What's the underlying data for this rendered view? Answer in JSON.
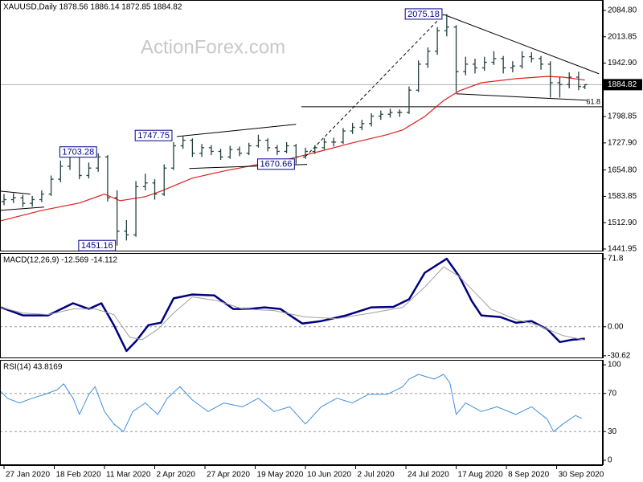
{
  "chart_data": [
    {
      "type": "ohlc",
      "title": "XAUUSD,Daily  1878.56 1886.14 1872.85 1884.82",
      "watermark": "ActionForex.com",
      "color": "#23403f",
      "x": [
        0,
        3,
        6,
        9,
        12,
        15,
        18,
        21,
        24,
        27,
        30,
        33,
        36,
        39,
        42,
        45,
        48,
        51,
        54,
        57,
        60,
        63,
        66,
        69,
        72,
        75,
        78,
        81,
        84,
        87,
        90,
        93,
        96,
        99,
        102,
        105,
        108,
        111,
        114,
        117,
        120,
        123,
        126,
        129,
        132,
        135,
        138,
        141,
        144,
        147,
        150,
        153,
        156,
        159,
        162,
        165,
        168,
        171,
        174,
        177,
        180,
        183,
        185
      ],
      "open": [
        1570,
        1575,
        1580,
        1565,
        1575,
        1590,
        1630,
        1665,
        1690,
        1640,
        1660,
        1690,
        1580,
        1490,
        1480,
        1610,
        1620,
        1590,
        1660,
        1720,
        1735,
        1700,
        1715,
        1705,
        1690,
        1710,
        1700,
        1720,
        1735,
        1715,
        1705,
        1720,
        1690,
        1705,
        1715,
        1730,
        1730,
        1760,
        1770,
        1780,
        1800,
        1805,
        1810,
        1810,
        1870,
        1940,
        1975,
        2030,
        2040,
        1920,
        1940,
        1930,
        1945,
        1955,
        1930,
        1935,
        1960,
        1955,
        1940,
        1890,
        1885,
        1905,
        1878.56
      ],
      "high": [
        1590,
        1592,
        1588,
        1585,
        1600,
        1640,
        1680,
        1703.28,
        1698,
        1675,
        1700,
        1695,
        1600,
        1520,
        1625,
        1645,
        1630,
        1670,
        1730,
        1747.75,
        1740,
        1725,
        1722,
        1712,
        1720,
        1718,
        1728,
        1750,
        1740,
        1722,
        1730,
        1725,
        1715,
        1722,
        1740,
        1742,
        1768,
        1782,
        1790,
        1808,
        1815,
        1820,
        1818,
        1880,
        1950,
        1985,
        2040,
        2075.18,
        2045,
        1960,
        1955,
        1960,
        1975,
        1962,
        1948,
        1975,
        1972,
        1962,
        1948,
        1905,
        1918,
        1920,
        1886.14
      ],
      "low": [
        1560,
        1566,
        1555,
        1556,
        1568,
        1585,
        1622,
        1655,
        1630,
        1632,
        1650,
        1570,
        1451.16,
        1465,
        1475,
        1600,
        1575,
        1585,
        1655,
        1712,
        1690,
        1690,
        1695,
        1682,
        1685,
        1692,
        1695,
        1715,
        1705,
        1695,
        1700,
        1670.66,
        1685,
        1698,
        1710,
        1718,
        1725,
        1752,
        1762,
        1772,
        1790,
        1796,
        1798,
        1806,
        1865,
        1930,
        1965,
        2015,
        1865,
        1910,
        1915,
        1922,
        1938,
        1915,
        1918,
        1928,
        1945,
        1925,
        1850,
        1850,
        1875,
        1870,
        1872.85
      ],
      "close": [
        1575,
        1580,
        1565,
        1575,
        1590,
        1630,
        1665,
        1690,
        1640,
        1660,
        1690,
        1580,
        1490,
        1480,
        1610,
        1620,
        1590,
        1660,
        1720,
        1735,
        1700,
        1715,
        1705,
        1690,
        1710,
        1700,
        1720,
        1735,
        1715,
        1705,
        1720,
        1690,
        1705,
        1715,
        1730,
        1730,
        1760,
        1770,
        1780,
        1800,
        1805,
        1810,
        1810,
        1870,
        1940,
        1975,
        2030,
        2040,
        1920,
        1940,
        1930,
        1945,
        1955,
        1930,
        1935,
        1960,
        1955,
        1940,
        1890,
        1885,
        1905,
        1880,
        1884.82
      ],
      "lines": [
        {
          "color": "#e02020",
          "x": [
            -1,
            12,
            24,
            32,
            37,
            45,
            50,
            60,
            70,
            81,
            91,
            101,
            111,
            122,
            127,
            134,
            140,
            145,
            152,
            163,
            173,
            178,
            185
          ],
          "values": [
            1518,
            1546,
            1566,
            1590,
            1572,
            1583,
            1598,
            1633,
            1652,
            1670,
            1685,
            1706,
            1728,
            1750,
            1763,
            1799,
            1842,
            1868,
            1890,
            1901,
            1907,
            1905,
            1897
          ]
        }
      ],
      "trendlines": [
        {
          "x": [
            -1.3,
            8.4
          ],
          "values": [
            1598,
            1590
          ]
        },
        {
          "x": [
            -1.3,
            12.8
          ],
          "values": [
            1546,
            1555
          ]
        },
        {
          "x": [
            55,
            93
          ],
          "values": [
            1745,
            1778
          ]
        },
        {
          "x": [
            59,
            96.5
          ],
          "values": [
            1659,
            1670
          ]
        },
        {
          "x": [
            96,
            140
          ],
          "values": [
            1691,
            2074
          ],
          "dashed": true
        },
        {
          "x": [
            140,
            189.5
          ],
          "values": [
            2074,
            1914
          ]
        },
        {
          "x": [
            144,
            185.6
          ],
          "values": [
            1860,
            1843
          ]
        }
      ],
      "price_labels": [
        {
          "x": 140,
          "value": 2075.18
        },
        {
          "x": 30,
          "value": 1703.28
        },
        {
          "x": 54,
          "value": 1747.75
        },
        {
          "x": 93,
          "value": 1670.66
        },
        {
          "x": 36,
          "value": 1451.16
        }
      ],
      "fib_level": {
        "ratio": 61.8,
        "price": 1825.2,
        "from_x": 94.7
      },
      "last_price": 1884.82,
      "xlim": [
        -1.28,
        190.7
      ],
      "xticks": [
        {
          "value": 0,
          "label": "27 Jan 2020"
        },
        {
          "value": 16,
          "label": "18 Feb 2020"
        },
        {
          "value": 32,
          "label": "11 Mar 2020"
        },
        {
          "value": 48,
          "label": "2 Apr 2020"
        },
        {
          "value": 64,
          "label": "27 Apr 2020"
        },
        {
          "value": 80,
          "label": "19 May 2020"
        },
        {
          "value": 96,
          "label": "10 Jun 2020"
        },
        {
          "value": 112,
          "label": "2 Jul 2020"
        },
        {
          "value": 128,
          "label": "24 Jul 2020"
        },
        {
          "value": 144,
          "label": "17 Aug 2020"
        },
        {
          "value": 160,
          "label": "8 Sep 2020"
        },
        {
          "value": 176,
          "label": "30 Sep 2020"
        }
      ],
      "ylim": [
        1435.4,
        2112.9
      ],
      "yticks": [
        {
          "value": 2084.8,
          "label": "2084.80"
        },
        2013.85,
        {
          "value": 1942.9,
          "label": "1942.90"
        },
        1798.85,
        {
          "value": 1727.9,
          "label": "1727.90"
        },
        {
          "value": 1654.8,
          "label": "1654.80"
        },
        1583.85,
        {
          "value": 1512.9,
          "label": "1512.90"
        },
        1441.95
      ]
    },
    {
      "type": "line",
      "title": "MACD(12,26,9) -12.569 -14.112",
      "series": [
        {
          "color": "#000080",
          "width": 2.5,
          "x": [
            -1,
            6,
            14,
            22,
            27,
            31,
            35,
            39,
            42,
            46,
            50,
            54,
            60,
            67,
            73,
            78,
            83,
            88,
            95,
            101,
            109,
            117,
            124,
            129,
            134,
            141,
            145,
            149,
            152,
            158,
            163,
            168,
            173,
            177,
            181,
            185
          ],
          "values": [
            20.5,
            12,
            12,
            24.8,
            18.8,
            24.8,
            1.7,
            -25.6,
            -15.4,
            1.7,
            4.3,
            30,
            34,
            33,
            18.8,
            18.8,
            20.5,
            18.8,
            3.4,
            6,
            12,
            20.5,
            21,
            29,
            57,
            71.8,
            53,
            27,
            12,
            10.3,
            4.3,
            6,
            -2.6,
            -16.2,
            -13.7,
            -12.6
          ]
        },
        {
          "color": "#a0a0a0",
          "width": 1,
          "x": [
            -1,
            6,
            14,
            22,
            29,
            35,
            40,
            44,
            49,
            54,
            60,
            68,
            76,
            86,
            96,
            106,
            117,
            127,
            134,
            140,
            145,
            150,
            155,
            163,
            170,
            178,
            185
          ],
          "values": [
            20.5,
            14.5,
            12.8,
            18.8,
            18.8,
            12.8,
            -11,
            -13.7,
            -2.6,
            14.5,
            31.6,
            27.4,
            18.8,
            17.1,
            10.3,
            8.6,
            14.5,
            20.5,
            41.9,
            63.3,
            53,
            36,
            18.8,
            7.7,
            1.7,
            -9.4,
            -14.1
          ]
        }
      ],
      "dashed_levels": [
        0
      ],
      "xlim": [
        -1.28,
        190.7
      ],
      "ylim": [
        -33.3,
        77.8
      ],
      "yticks": [
        71.8,
        {
          "value": 0,
          "label": "0.00"
        },
        -30.62
      ]
    },
    {
      "type": "line",
      "title": "RSI(14) 43.8169",
      "series": [
        {
          "color": "#3f8fe0",
          "width": 1,
          "x": [
            -1,
            1,
            5,
            9,
            13,
            17,
            19,
            22,
            24,
            27,
            29,
            32,
            35,
            38,
            41,
            45,
            49,
            52,
            56,
            60,
            65,
            70,
            76,
            81,
            86,
            91,
            96,
            101,
            106,
            111,
            116,
            122,
            127,
            129,
            132,
            137,
            140,
            142,
            144,
            147,
            152,
            157,
            163,
            168,
            173,
            175,
            178,
            182,
            184
          ],
          "values": [
            72,
            65,
            60,
            65,
            69,
            74,
            80,
            65,
            48,
            69,
            77,
            51,
            38,
            30,
            51,
            60,
            48,
            65,
            77,
            63,
            51,
            60,
            56,
            65,
            51,
            56,
            38,
            56,
            65,
            60,
            69,
            69,
            77,
            85,
            90,
            85,
            90,
            81,
            48,
            60,
            51,
            56,
            48,
            56,
            43,
            30,
            38,
            47,
            43.8
          ]
        }
      ],
      "dashed_levels": [
        70,
        30
      ],
      "xlim": [
        -1.28,
        190.7
      ],
      "ylim": [
        -5.1,
        105.1
      ],
      "yticks": [
        100,
        70,
        30,
        0
      ]
    }
  ]
}
